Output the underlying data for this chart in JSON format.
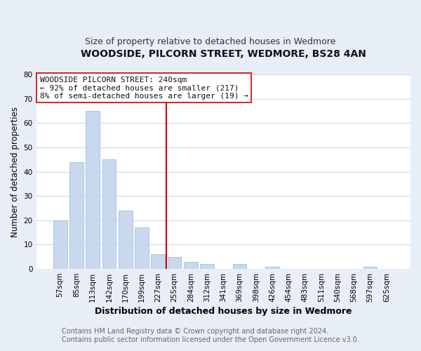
{
  "title": "WOODSIDE, PILCORN STREET, WEDMORE, BS28 4AN",
  "subtitle": "Size of property relative to detached houses in Wedmore",
  "xlabel": "Distribution of detached houses by size in Wedmore",
  "ylabel": "Number of detached properties",
  "bar_color": "#c8d8ee",
  "bar_edge_color": "#a8bcd8",
  "bin_labels": [
    "57sqm",
    "85sqm",
    "113sqm",
    "142sqm",
    "170sqm",
    "199sqm",
    "227sqm",
    "255sqm",
    "284sqm",
    "312sqm",
    "341sqm",
    "369sqm",
    "398sqm",
    "426sqm",
    "454sqm",
    "483sqm",
    "511sqm",
    "540sqm",
    "568sqm",
    "597sqm",
    "625sqm"
  ],
  "bar_heights": [
    20,
    44,
    65,
    45,
    24,
    17,
    6,
    5,
    3,
    2,
    0,
    2,
    0,
    1,
    0,
    0,
    0,
    0,
    0,
    1,
    0
  ],
  "ylim": [
    0,
    80
  ],
  "yticks": [
    0,
    10,
    20,
    30,
    40,
    50,
    60,
    70,
    80
  ],
  "vline_x": 6.5,
  "vline_color": "#cc0000",
  "annotation_line1": "WOODSIDE PILCORN STREET: 240sqm",
  "annotation_line2": "← 92% of detached houses are smaller (217)",
  "annotation_line3": "8% of semi-detached houses are larger (19) →",
  "annotation_box_color": "#ffffff",
  "annotation_box_edge": "#cc0000",
  "footer_line1": "Contains HM Land Registry data © Crown copyright and database right 2024.",
  "footer_line2": "Contains public sector information licensed under the Open Government Licence v3.0.",
  "plot_bg_color": "#ffffff",
  "fig_bg_color": "#e8eef8",
  "title_fontsize": 10,
  "subtitle_fontsize": 9,
  "xlabel_fontsize": 9,
  "ylabel_fontsize": 8.5,
  "tick_fontsize": 7.5,
  "annotation_fontsize": 8,
  "footer_fontsize": 7
}
